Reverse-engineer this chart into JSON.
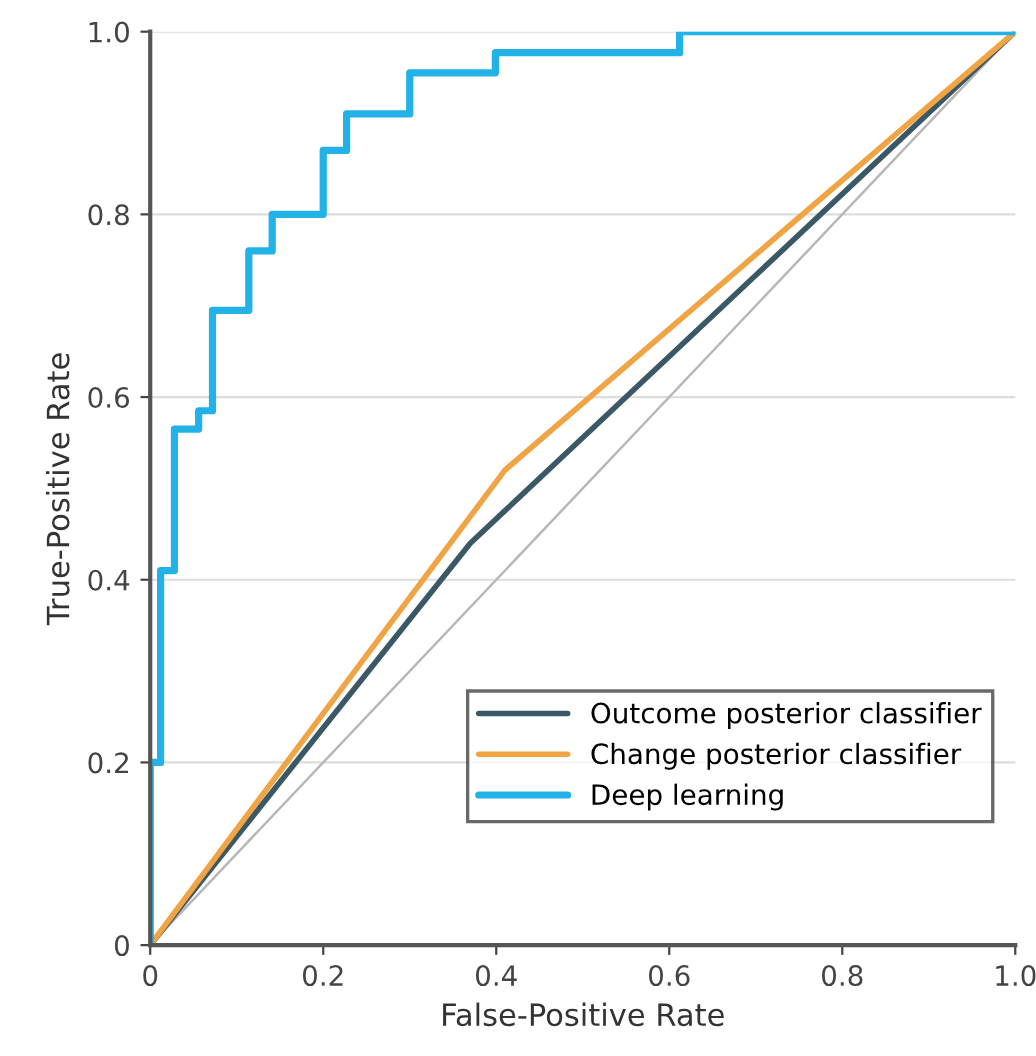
{
  "chart_data": {
    "type": "line",
    "xlabel": "False-Positive Rate",
    "ylabel": "True-Positive Rate",
    "xlim": [
      0,
      1
    ],
    "ylim": [
      0,
      1
    ],
    "xticks": [
      0,
      0.2,
      0.4,
      0.6,
      0.8,
      {
        "value": 1,
        "label": "1.0"
      }
    ],
    "yticks": [
      0,
      0.2,
      0.4,
      0.6,
      0.8,
      {
        "value": 1,
        "label": "1.0"
      }
    ],
    "grid": "y",
    "legend": "bottom right",
    "series": [
      {
        "color": "#b8b8b8",
        "x": [
          0,
          1
        ],
        "values": [
          0,
          1
        ]
      },
      {
        "name": "Outcome posterior classifier",
        "color": "#3b5866",
        "x": [
          0,
          0.37,
          1
        ],
        "values": [
          0,
          0.44,
          1
        ]
      },
      {
        "name": "Change posterior classifier",
        "color": "#f0a443",
        "x": [
          0,
          0.41,
          1
        ],
        "values": [
          0,
          0.52,
          1
        ]
      },
      {
        "name": "Deep learning",
        "type": "step",
        "color": "#22b2e8",
        "x": [
          0,
          0,
          0.012,
          0.028,
          0.056,
          0.072,
          0.114,
          0.141,
          0.2,
          0.227,
          0.3,
          0.399,
          0.612,
          1
        ],
        "values": [
          0,
          0.2,
          0.41,
          0.565,
          0.585,
          0.695,
          0.76,
          0.8,
          0.87,
          0.91,
          0.955,
          0.977,
          1,
          1
        ]
      }
    ]
  }
}
